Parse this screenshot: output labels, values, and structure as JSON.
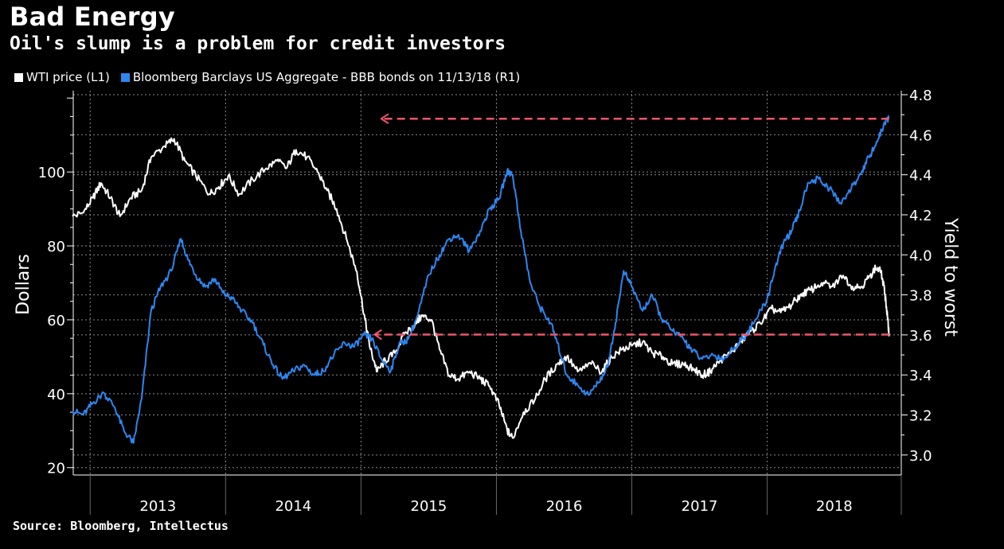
{
  "header": {
    "title": "Bad Energy",
    "subtitle": "Oil's slump is a problem for credit investors"
  },
  "legend": [
    {
      "label": "WTI price (L1)",
      "color": "#ffffff"
    },
    {
      "label": "Bloomberg Barclays US Aggregate - BBB bonds on 11/13/18 (R1)",
      "color": "#2e86f0"
    }
  ],
  "source": "Source: Bloomberg, Intellectus",
  "chart_data": {
    "type": "line",
    "x_ticks": [
      "2013",
      "2014",
      "2015",
      "2016",
      "2017",
      "2018"
    ],
    "y_left": {
      "label": "Dollars",
      "range": [
        18,
        122
      ],
      "ticks": [
        20,
        40,
        60,
        80,
        100
      ]
    },
    "y_right": {
      "label": "Yield to worst",
      "range": [
        2.9,
        4.82
      ],
      "ticks": [
        "3.0",
        "3.2",
        "3.4",
        "3.6",
        "3.8",
        "4.0",
        "4.2",
        "4.4",
        "4.6",
        "4.8"
      ]
    },
    "grid": true,
    "series": [
      {
        "name": "WTI price (L1)",
        "axis": "left",
        "color": "#ffffff",
        "points": [
          [
            2012.87,
            88
          ],
          [
            2012.95,
            89
          ],
          [
            2013.02,
            93
          ],
          [
            2013.08,
            97
          ],
          [
            2013.15,
            93
          ],
          [
            2013.22,
            88
          ],
          [
            2013.3,
            93
          ],
          [
            2013.38,
            95
          ],
          [
            2013.45,
            104
          ],
          [
            2013.55,
            107
          ],
          [
            2013.62,
            109
          ],
          [
            2013.7,
            103
          ],
          [
            2013.78,
            99
          ],
          [
            2013.88,
            94
          ],
          [
            2013.95,
            96
          ],
          [
            2014.02,
            99
          ],
          [
            2014.1,
            94
          ],
          [
            2014.2,
            98
          ],
          [
            2014.3,
            101
          ],
          [
            2014.38,
            103
          ],
          [
            2014.45,
            101
          ],
          [
            2014.52,
            106
          ],
          [
            2014.6,
            104
          ],
          [
            2014.68,
            100
          ],
          [
            2014.75,
            95
          ],
          [
            2014.82,
            90
          ],
          [
            2014.9,
            81
          ],
          [
            2014.97,
            73
          ],
          [
            2015.03,
            60
          ],
          [
            2015.07,
            52
          ],
          [
            2015.12,
            46
          ],
          [
            2015.18,
            49
          ],
          [
            2015.25,
            51
          ],
          [
            2015.32,
            56
          ],
          [
            2015.4,
            59
          ],
          [
            2015.45,
            61
          ],
          [
            2015.52,
            60
          ],
          [
            2015.58,
            52
          ],
          [
            2015.65,
            45
          ],
          [
            2015.72,
            44
          ],
          [
            2015.8,
            46
          ],
          [
            2015.88,
            44
          ],
          [
            2015.95,
            42
          ],
          [
            2016.02,
            37
          ],
          [
            2016.08,
            30
          ],
          [
            2016.12,
            28
          ],
          [
            2016.2,
            35
          ],
          [
            2016.28,
            38
          ],
          [
            2016.36,
            44
          ],
          [
            2016.45,
            48
          ],
          [
            2016.52,
            50
          ],
          [
            2016.6,
            46
          ],
          [
            2016.7,
            48
          ],
          [
            2016.78,
            46
          ],
          [
            2016.85,
            50
          ],
          [
            2016.93,
            52
          ],
          [
            2017.0,
            53
          ],
          [
            2017.08,
            54
          ],
          [
            2017.15,
            51
          ],
          [
            2017.23,
            50
          ],
          [
            2017.3,
            48
          ],
          [
            2017.38,
            48
          ],
          [
            2017.45,
            47
          ],
          [
            2017.52,
            45
          ],
          [
            2017.58,
            46
          ],
          [
            2017.65,
            49
          ],
          [
            2017.73,
            51
          ],
          [
            2017.8,
            54
          ],
          [
            2017.88,
            57
          ],
          [
            2017.95,
            59
          ],
          [
            2018.03,
            63
          ],
          [
            2018.1,
            62
          ],
          [
            2018.18,
            64
          ],
          [
            2018.25,
            67
          ],
          [
            2018.32,
            68
          ],
          [
            2018.4,
            70
          ],
          [
            2018.48,
            69
          ],
          [
            2018.56,
            72
          ],
          [
            2018.63,
            69
          ],
          [
            2018.7,
            69
          ],
          [
            2018.76,
            72
          ],
          [
            2018.8,
            74
          ],
          [
            2018.84,
            73
          ],
          [
            2018.87,
            67
          ],
          [
            2018.89,
            60
          ],
          [
            2018.9,
            56
          ]
        ]
      },
      {
        "name": "Bloomberg Barclays US Aggregate - BBB bonds on 11/13/18 (R1)",
        "axis": "right",
        "color": "#2e86f0",
        "points": [
          [
            2012.87,
            3.22
          ],
          [
            2012.95,
            3.2
          ],
          [
            2013.02,
            3.26
          ],
          [
            2013.1,
            3.31
          ],
          [
            2013.18,
            3.24
          ],
          [
            2013.25,
            3.12
          ],
          [
            2013.32,
            3.06
          ],
          [
            2013.38,
            3.28
          ],
          [
            2013.45,
            3.72
          ],
          [
            2013.52,
            3.84
          ],
          [
            2013.6,
            3.92
          ],
          [
            2013.67,
            4.08
          ],
          [
            2013.72,
            3.98
          ],
          [
            2013.78,
            3.9
          ],
          [
            2013.85,
            3.84
          ],
          [
            2013.92,
            3.88
          ],
          [
            2013.98,
            3.81
          ],
          [
            2014.05,
            3.78
          ],
          [
            2014.12,
            3.72
          ],
          [
            2014.2,
            3.66
          ],
          [
            2014.28,
            3.55
          ],
          [
            2014.35,
            3.45
          ],
          [
            2014.42,
            3.38
          ],
          [
            2014.5,
            3.42
          ],
          [
            2014.58,
            3.45
          ],
          [
            2014.65,
            3.4
          ],
          [
            2014.72,
            3.42
          ],
          [
            2014.8,
            3.5
          ],
          [
            2014.88,
            3.56
          ],
          [
            2014.95,
            3.54
          ],
          [
            2015.02,
            3.6
          ],
          [
            2015.08,
            3.58
          ],
          [
            2015.15,
            3.48
          ],
          [
            2015.22,
            3.42
          ],
          [
            2015.28,
            3.55
          ],
          [
            2015.35,
            3.58
          ],
          [
            2015.42,
            3.7
          ],
          [
            2015.5,
            3.9
          ],
          [
            2015.58,
            4.0
          ],
          [
            2015.65,
            4.08
          ],
          [
            2015.72,
            4.1
          ],
          [
            2015.8,
            4.02
          ],
          [
            2015.88,
            4.12
          ],
          [
            2015.95,
            4.23
          ],
          [
            2016.02,
            4.28
          ],
          [
            2016.08,
            4.42
          ],
          [
            2016.12,
            4.4
          ],
          [
            2016.18,
            4.12
          ],
          [
            2016.25,
            3.86
          ],
          [
            2016.32,
            3.74
          ],
          [
            2016.4,
            3.66
          ],
          [
            2016.45,
            3.56
          ],
          [
            2016.52,
            3.4
          ],
          [
            2016.6,
            3.35
          ],
          [
            2016.68,
            3.3
          ],
          [
            2016.75,
            3.36
          ],
          [
            2016.82,
            3.44
          ],
          [
            2016.88,
            3.66
          ],
          [
            2016.94,
            3.92
          ],
          [
            2017.0,
            3.84
          ],
          [
            2017.08,
            3.72
          ],
          [
            2017.15,
            3.8
          ],
          [
            2017.22,
            3.68
          ],
          [
            2017.3,
            3.62
          ],
          [
            2017.38,
            3.58
          ],
          [
            2017.45,
            3.52
          ],
          [
            2017.52,
            3.48
          ],
          [
            2017.6,
            3.5
          ],
          [
            2017.68,
            3.48
          ],
          [
            2017.76,
            3.54
          ],
          [
            2017.84,
            3.6
          ],
          [
            2017.92,
            3.68
          ],
          [
            2018.0,
            3.78
          ],
          [
            2018.06,
            3.94
          ],
          [
            2018.12,
            4.06
          ],
          [
            2018.18,
            4.12
          ],
          [
            2018.24,
            4.22
          ],
          [
            2018.3,
            4.36
          ],
          [
            2018.38,
            4.38
          ],
          [
            2018.46,
            4.33
          ],
          [
            2018.54,
            4.26
          ],
          [
            2018.62,
            4.33
          ],
          [
            2018.7,
            4.42
          ],
          [
            2018.76,
            4.5
          ],
          [
            2018.82,
            4.58
          ],
          [
            2018.87,
            4.66
          ],
          [
            2018.9,
            4.68
          ]
        ]
      }
    ],
    "annotations": [
      {
        "type": "dashed-arrow",
        "axis": "right",
        "y": 4.68,
        "x_from": 2018.9,
        "x_to": 2015.15,
        "color": "#f0566a"
      },
      {
        "type": "dashed-arrow",
        "axis": "left",
        "y": 56,
        "x_from": 2018.9,
        "x_to": 2015.1,
        "color": "#f0566a"
      }
    ]
  }
}
